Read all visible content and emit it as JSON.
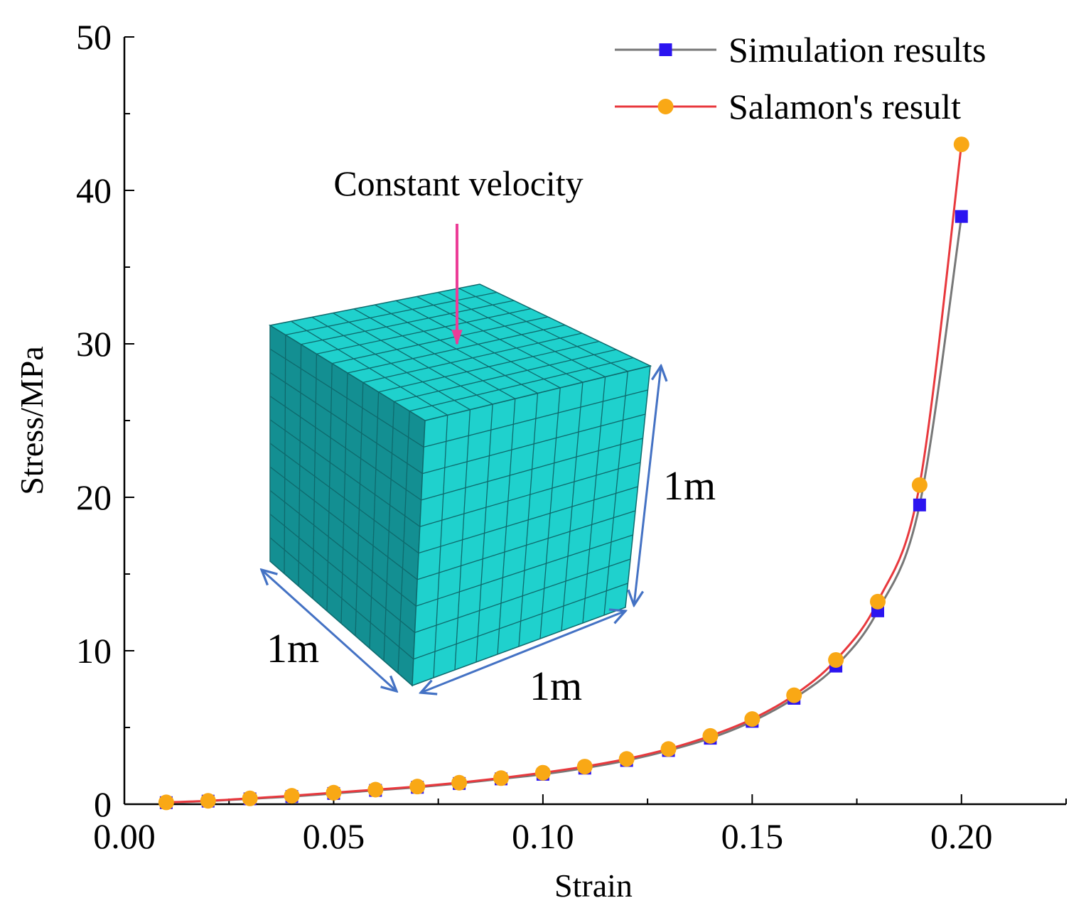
{
  "chart_data": {
    "type": "line",
    "xlabel": "Strain",
    "ylabel": "Stress/MPa",
    "xlim": [
      0,
      0.225
    ],
    "ylim": [
      0,
      50
    ],
    "x_ticks": [
      "0.00",
      "0.05",
      "0.10",
      "0.15",
      "0.20"
    ],
    "x_tick_values": [
      0,
      0.05,
      0.1,
      0.15,
      0.2
    ],
    "y_ticks": [
      "0",
      "10",
      "20",
      "30",
      "40",
      "50"
    ],
    "y_tick_values": [
      0,
      10,
      20,
      30,
      40,
      50
    ],
    "legend_position": "top-right",
    "series": [
      {
        "name": "Simulation results",
        "line_color": "#777777",
        "marker": "square",
        "marker_color": "#2b14f0",
        "x": [
          0.01,
          0.02,
          0.03,
          0.04,
          0.05,
          0.06,
          0.07,
          0.08,
          0.09,
          0.1,
          0.11,
          0.12,
          0.13,
          0.14,
          0.15,
          0.16,
          0.17,
          0.18,
          0.19,
          0.2
        ],
        "values": [
          0.1,
          0.2,
          0.35,
          0.5,
          0.7,
          0.9,
          1.1,
          1.35,
          1.65,
          1.95,
          2.35,
          2.85,
          3.5,
          4.3,
          5.4,
          6.9,
          9.0,
          12.6,
          19.5,
          38.3
        ]
      },
      {
        "name": "Salamon's result",
        "line_color": "#e8383d",
        "marker": "circle",
        "marker_color": "#f9a815",
        "x": [
          0.01,
          0.02,
          0.03,
          0.04,
          0.05,
          0.06,
          0.07,
          0.08,
          0.09,
          0.1,
          0.11,
          0.12,
          0.13,
          0.14,
          0.15,
          0.16,
          0.17,
          0.18,
          0.19,
          0.2
        ],
        "values": [
          0.12,
          0.22,
          0.38,
          0.55,
          0.75,
          0.95,
          1.15,
          1.4,
          1.7,
          2.05,
          2.45,
          2.95,
          3.6,
          4.45,
          5.55,
          7.1,
          9.4,
          13.2,
          20.8,
          43.0
        ]
      }
    ],
    "inset": {
      "annotation": "Constant velocity",
      "arrow_color": "#ec3d97",
      "cube_color": "#1fd1cd",
      "dimension_color": "#4472c4",
      "dimensions": [
        "1m",
        "1m",
        "1m"
      ],
      "grid_divisions": 10
    }
  }
}
